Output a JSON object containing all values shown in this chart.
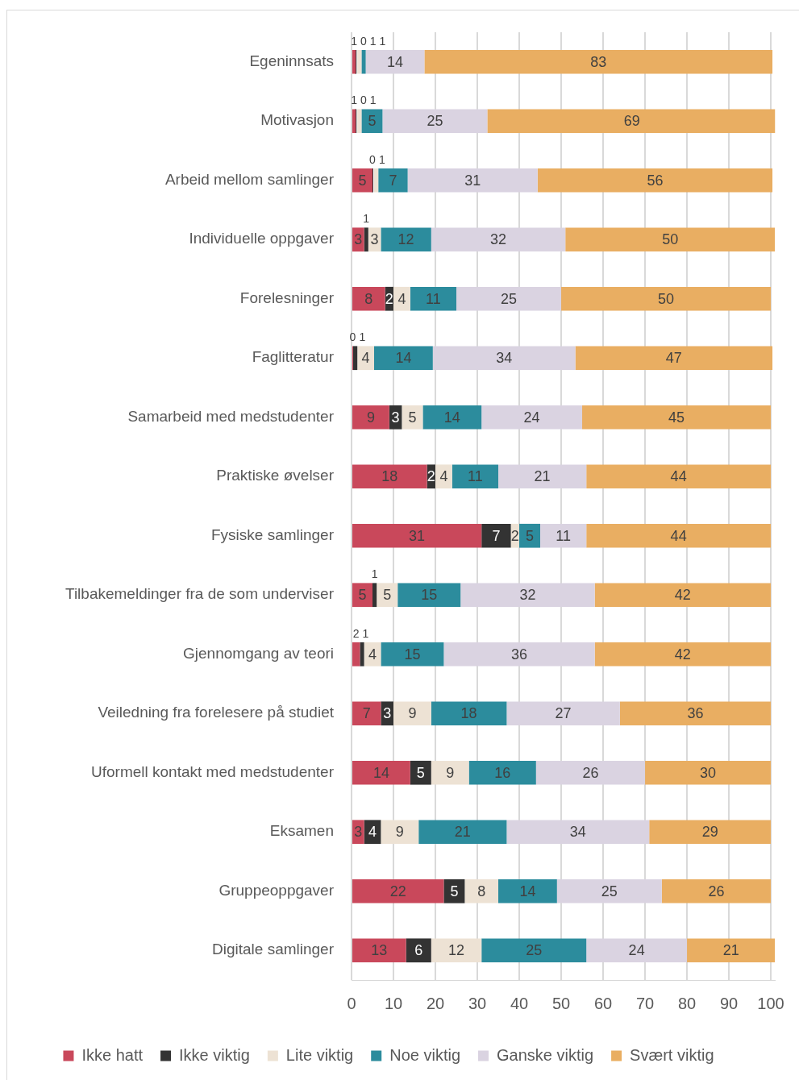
{
  "chart_data": {
    "type": "bar",
    "orientation": "horizontal",
    "stacked": true,
    "categories": [
      "Egeninnsats",
      "Motivasjon",
      "Arbeid mellom samlinger",
      "Individuelle oppgaver",
      "Forelesninger",
      "Faglitteratur",
      "Samarbeid med medstudenter",
      "Praktiske øvelser",
      "Fysiske samlinger",
      "Tilbakemeldinger fra de som underviser",
      "Gjennomgang av teori",
      "Veiledning fra forelesere på studiet",
      "Uformell kontakt med medstudenter",
      "Eksamen",
      "Gruppeoppgaver",
      "Digitale samlinger"
    ],
    "series": [
      {
        "name": "Ikke hatt",
        "color": "#c9485b",
        "values": [
          1,
          1,
          5,
          3,
          8,
          0,
          9,
          18,
          31,
          5,
          2,
          7,
          14,
          3,
          22,
          13
        ]
      },
      {
        "name": "Ikke viktig",
        "color": "#333333",
        "values": [
          0,
          0,
          0,
          1,
          2,
          1,
          3,
          2,
          7,
          1,
          1,
          3,
          5,
          4,
          5,
          6
        ]
      },
      {
        "name": "Lite viktig",
        "color": "#ede2d4",
        "values": [
          1,
          1,
          1,
          3,
          4,
          4,
          5,
          4,
          2,
          5,
          4,
          9,
          9,
          9,
          8,
          12
        ]
      },
      {
        "name": "Noe viktig",
        "color": "#2c8c9d",
        "values": [
          1,
          5,
          7,
          12,
          11,
          14,
          14,
          11,
          5,
          15,
          15,
          18,
          16,
          21,
          14,
          25
        ]
      },
      {
        "name": "Ganske viktig",
        "color": "#dad3e1",
        "values": [
          14,
          25,
          31,
          32,
          25,
          34,
          24,
          21,
          11,
          32,
          36,
          27,
          26,
          34,
          25,
          24
        ]
      },
      {
        "name": "Svært viktig",
        "color": "#e9ae62",
        "values": [
          83,
          69,
          56,
          50,
          50,
          47,
          45,
          44,
          44,
          42,
          42,
          36,
          30,
          29,
          26,
          21
        ]
      }
    ],
    "xlim": [
      0,
      101
    ],
    "xticks": [
      0,
      10,
      20,
      30,
      40,
      50,
      60,
      70,
      80,
      90,
      100
    ],
    "grid": "x",
    "legend": "bottom",
    "data_labels": true
  }
}
